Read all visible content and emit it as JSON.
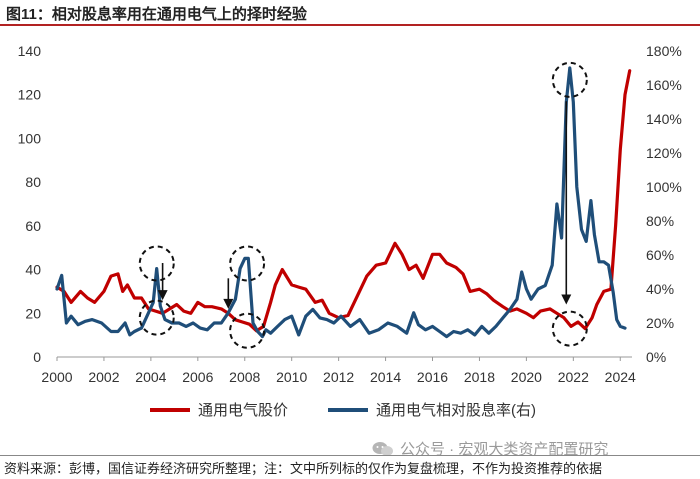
{
  "figure": {
    "title": "图11：相对股息率用在通用电气上的择时经验",
    "source": "资料来源：彭博，国信证券经济研究所整理；注：文中所列标的仅作为复盘梳理，不作为投资推荐的依据",
    "watermark": "公众号 · 宏观大类资产配置研究"
  },
  "colors": {
    "price": "#c00000",
    "yield": "#1f4e79",
    "title_rule": "#b22222"
  },
  "chart_data": {
    "type": "line",
    "title": "图11：相对股息率用在通用电气上的择时经验",
    "x_ticks": [
      "2000",
      "2002",
      "2004",
      "2006",
      "2008",
      "2010",
      "2012",
      "2014",
      "2016",
      "2018",
      "2020",
      "2022",
      "2024"
    ],
    "xlim": [
      2000,
      2024.5
    ],
    "y_left": {
      "ticks": [
        "0",
        "20",
        "40",
        "60",
        "80",
        "100",
        "120",
        "140"
      ],
      "lim": [
        0,
        140
      ]
    },
    "y_right": {
      "ticks": [
        "0%",
        "20%",
        "40%",
        "60%",
        "80%",
        "100%",
        "120%",
        "140%",
        "160%",
        "180%"
      ],
      "lim": [
        0,
        180
      ]
    },
    "series": [
      {
        "name": "通用电气股价",
        "axis": "left",
        "color": "#c00000",
        "x": [
          2000,
          2000.3,
          2000.6,
          2001,
          2001.3,
          2001.6,
          2002,
          2002.3,
          2002.6,
          2002.8,
          2003,
          2003.3,
          2003.6,
          2003.9,
          2004.2,
          2004.5,
          2004.8,
          2005.1,
          2005.4,
          2005.7,
          2006,
          2006.3,
          2006.6,
          2007,
          2007.3,
          2007.6,
          2007.9,
          2008.2,
          2008.5,
          2008.8,
          2009.1,
          2009.3,
          2009.6,
          2010,
          2010.3,
          2010.6,
          2011,
          2011.3,
          2011.6,
          2012,
          2012.4,
          2012.8,
          2013.2,
          2013.6,
          2014,
          2014.4,
          2014.7,
          2015,
          2015.3,
          2015.6,
          2016,
          2016.3,
          2016.6,
          2017,
          2017.3,
          2017.6,
          2018,
          2018.3,
          2018.6,
          2019,
          2019.3,
          2019.6,
          2020,
          2020.3,
          2020.6,
          2021,
          2021.3,
          2021.6,
          2021.9,
          2022.2,
          2022.5,
          2022.8,
          2023,
          2023.3,
          2023.6,
          2023.8,
          2024,
          2024.2,
          2024.4
        ],
        "values": [
          32,
          30,
          25,
          30,
          27,
          25,
          30,
          37,
          38,
          30,
          33,
          27,
          27,
          22,
          21,
          20,
          22,
          24,
          21,
          20,
          25,
          23,
          23,
          22,
          20,
          17,
          16,
          15,
          12,
          14,
          25,
          33,
          40,
          33,
          32,
          31,
          25,
          26,
          20,
          18,
          19,
          28,
          37,
          42,
          43,
          52,
          47,
          40,
          42,
          36,
          47,
          47,
          43,
          41,
          38,
          30,
          31,
          29,
          26,
          23,
          21,
          22,
          20,
          18,
          21,
          22,
          20,
          18,
          14,
          16,
          13,
          18,
          24,
          30,
          31,
          60,
          95,
          120,
          131
        ]
      },
      {
        "name": "通用电气相对股息率(右)",
        "axis": "right",
        "color": "#1f4e79",
        "x": [
          2000,
          2000.2,
          2000.4,
          2000.6,
          2000.9,
          2001.2,
          2001.5,
          2001.9,
          2002.3,
          2002.6,
          2002.9,
          2003.1,
          2003.3,
          2003.6,
          2003.9,
          2004.1,
          2004.25,
          2004.4,
          2004.6,
          2004.9,
          2005.2,
          2005.5,
          2005.8,
          2006.1,
          2006.4,
          2006.7,
          2007,
          2007.3,
          2007.6,
          2007.8,
          2008,
          2008.15,
          2008.35,
          2008.55,
          2008.75,
          2008.9,
          2009.1,
          2009.4,
          2009.7,
          2010,
          2010.3,
          2010.6,
          2010.9,
          2011.2,
          2011.5,
          2011.8,
          2012.1,
          2012.5,
          2012.9,
          2013.3,
          2013.7,
          2014.1,
          2014.5,
          2014.9,
          2015.2,
          2015.4,
          2015.7,
          2016,
          2016.3,
          2016.6,
          2016.9,
          2017.2,
          2017.5,
          2017.8,
          2018.1,
          2018.4,
          2018.7,
          2019,
          2019.3,
          2019.6,
          2019.8,
          2020,
          2020.2,
          2020.5,
          2020.8,
          2021.1,
          2021.3,
          2021.5,
          2021.7,
          2021.85,
          2022,
          2022.15,
          2022.35,
          2022.55,
          2022.75,
          2022.9,
          2023.1,
          2023.3,
          2023.5,
          2023.7,
          2023.85,
          2024,
          2024.2
        ],
        "values": [
          40,
          48,
          20,
          24,
          19,
          21,
          22,
          20,
          15,
          15,
          20,
          13,
          15,
          17,
          26,
          32,
          52,
          30,
          22,
          20,
          20,
          18,
          20,
          17,
          16,
          20,
          20,
          26,
          34,
          52,
          58,
          58,
          20,
          15,
          12,
          16,
          14,
          18,
          22,
          24,
          13,
          24,
          28,
          23,
          22,
          20,
          24,
          18,
          22,
          14,
          16,
          20,
          18,
          14,
          26,
          19,
          16,
          18,
          15,
          12,
          15,
          14,
          16,
          13,
          18,
          14,
          18,
          23,
          28,
          34,
          50,
          40,
          34,
          40,
          42,
          54,
          90,
          70,
          150,
          170,
          150,
          100,
          75,
          68,
          92,
          72,
          56,
          56,
          54,
          38,
          22,
          18,
          17
        ]
      }
    ],
    "annotations": [
      {
        "type": "dashed-circle",
        "year": 2004.25,
        "value_right": 55,
        "label": ""
      },
      {
        "type": "dashed-circle",
        "year": 2004.25,
        "value_left": 18,
        "label": ""
      },
      {
        "type": "dashed-circle",
        "year": 2008.1,
        "value_right": 55,
        "label": ""
      },
      {
        "type": "dashed-circle",
        "year": 2008.1,
        "value_left": 12,
        "label": ""
      },
      {
        "type": "dashed-circle",
        "year": 2021.85,
        "value_right": 163,
        "label": ""
      },
      {
        "type": "dashed-circle",
        "year": 2021.85,
        "value_left": 13,
        "label": ""
      },
      {
        "type": "arrow",
        "year": 2004.5,
        "from_left": 43,
        "to_left": 26
      },
      {
        "type": "arrow",
        "year": 2007.3,
        "from_left": 36,
        "to_left": 22
      },
      {
        "type": "arrow",
        "year": 2021.7,
        "from_left": 117,
        "to_left": 24
      }
    ],
    "legend": {
      "position": "bottom",
      "entries": [
        "通用电气股价",
        "通用电气相对股息率(右)"
      ]
    },
    "grid": false
  }
}
